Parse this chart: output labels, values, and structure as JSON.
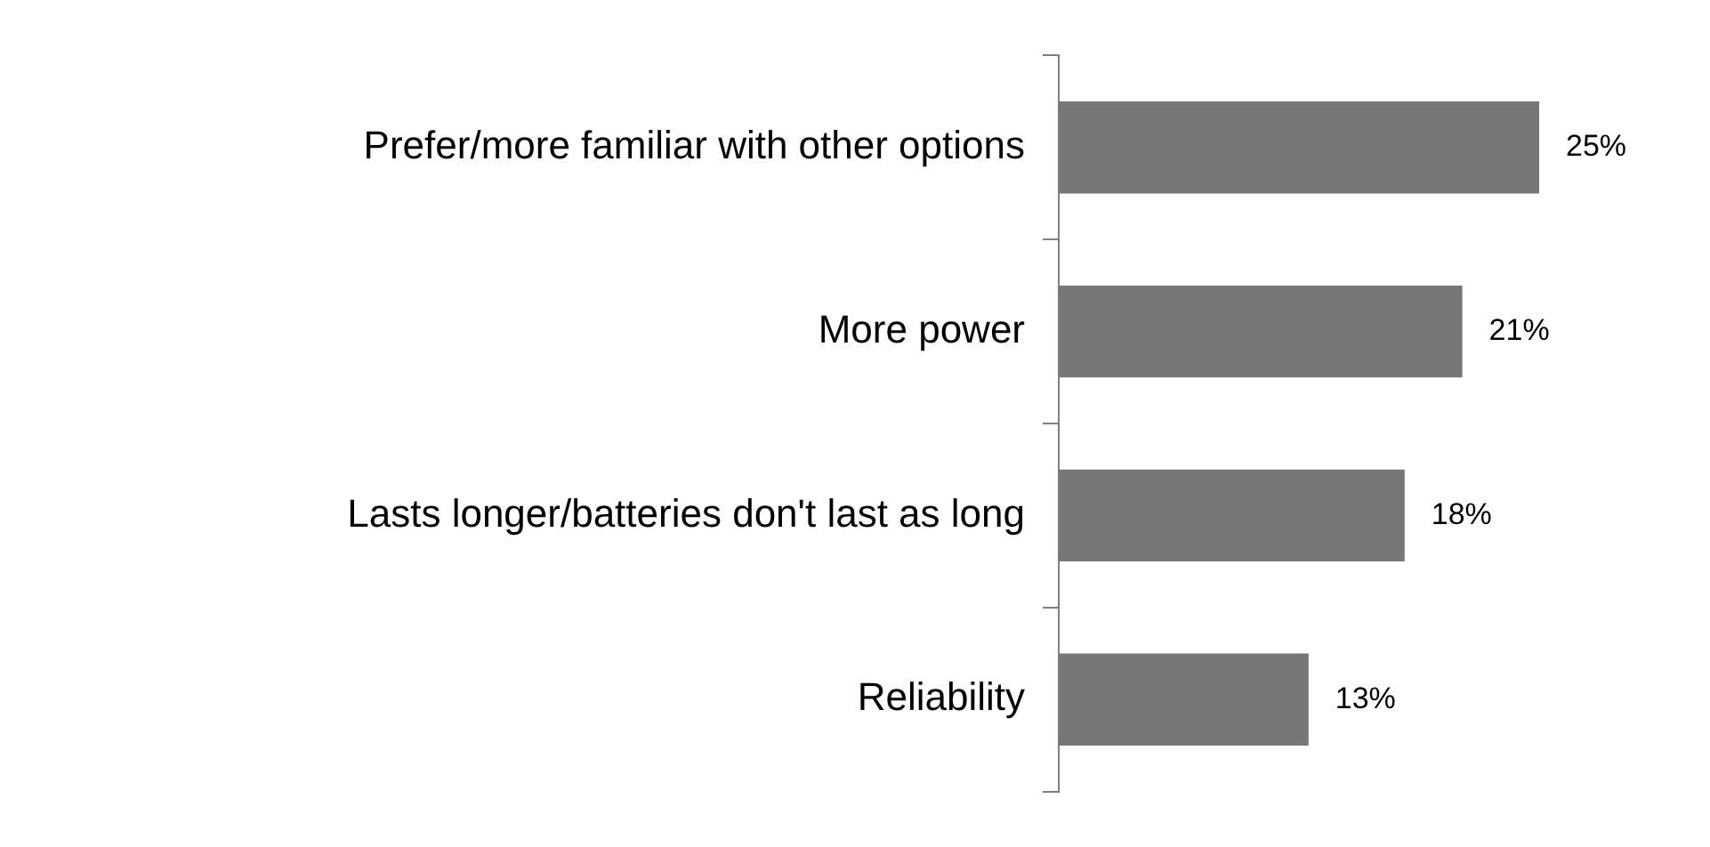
{
  "chart_data": {
    "type": "bar",
    "orientation": "horizontal",
    "categories": [
      "Prefer/more familiar with other options",
      "More power",
      "Lasts longer/batteries don't last as long",
      "Reliability"
    ],
    "values": [
      25,
      21,
      18,
      13
    ],
    "color": "#777777",
    "value_labels": [
      "25%",
      "21%",
      "18%",
      "13%"
    ],
    "tick_labels": "y"
  }
}
